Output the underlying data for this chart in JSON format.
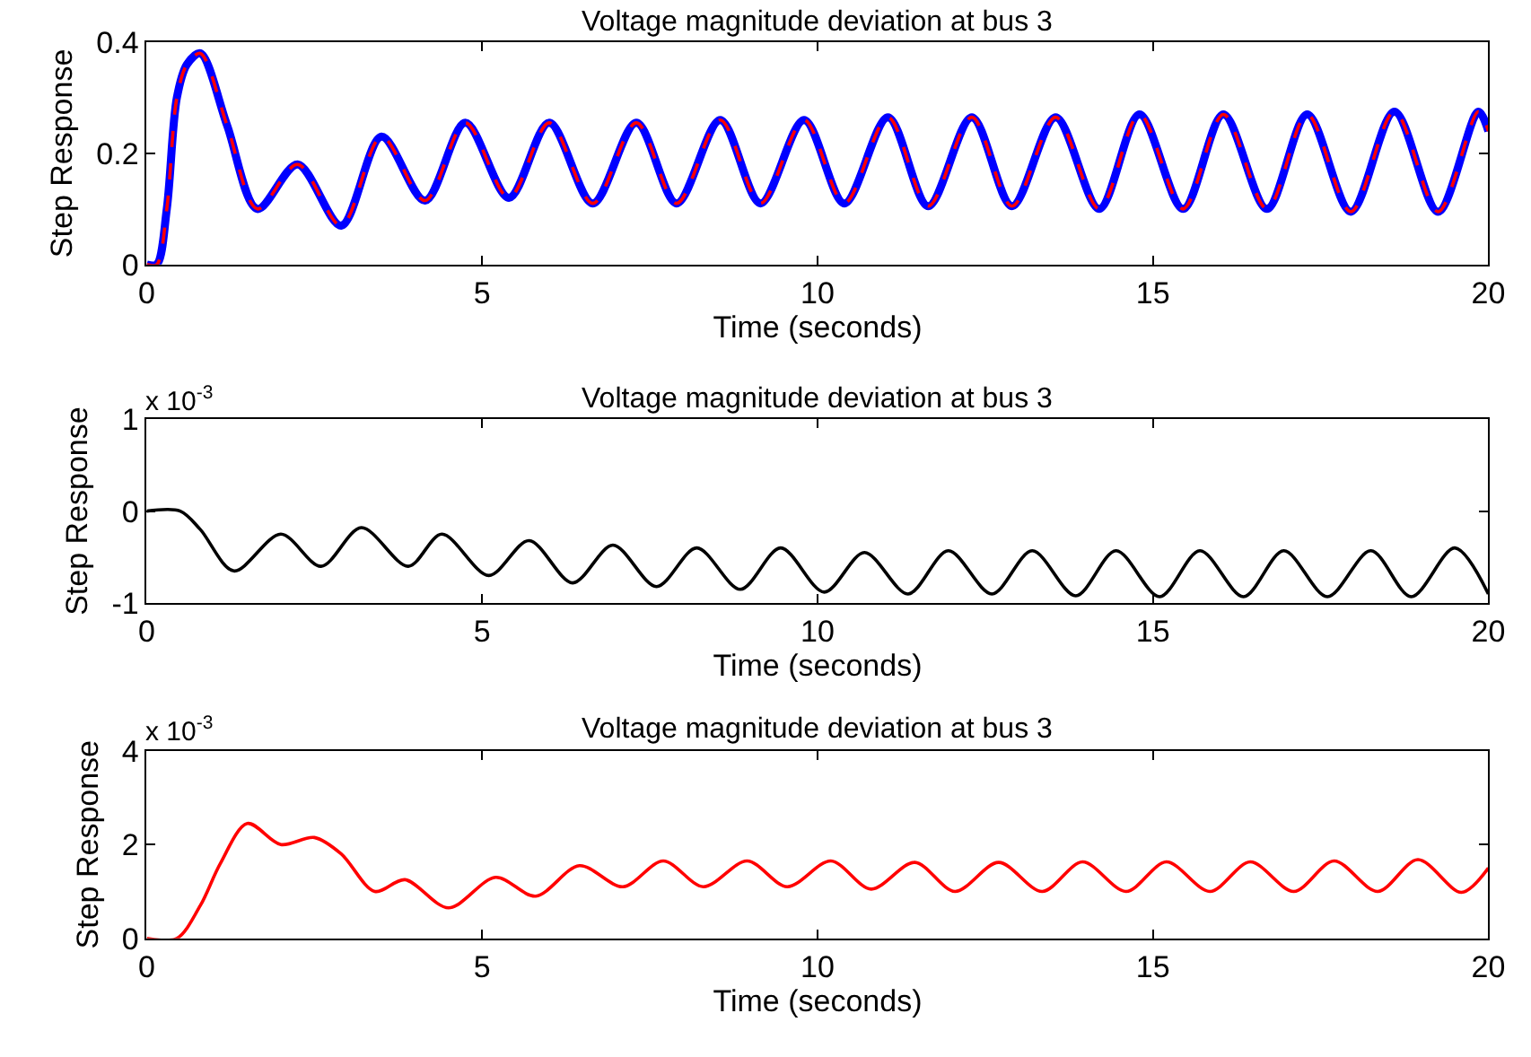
{
  "chart_data": [
    {
      "type": "line",
      "title": "Voltage magnitude deviation at bus 3",
      "xlabel": "Time (seconds)",
      "ylabel": "Step Response",
      "xlim": [
        0,
        20
      ],
      "ylim": [
        0,
        0.4
      ],
      "xticks": [
        0,
        5,
        10,
        15,
        20
      ],
      "yticks": [
        0,
        0.2,
        0.4
      ],
      "grid": false,
      "x": [
        0,
        0.15,
        0.3,
        0.45,
        0.6,
        0.8,
        1.2,
        1.65,
        2.25,
        2.9,
        3.5,
        4.15,
        4.75,
        5.4,
        6.0,
        6.65,
        7.3,
        7.9,
        8.55,
        9.15,
        9.8,
        10.4,
        11.05,
        11.65,
        12.3,
        12.9,
        13.55,
        14.2,
        14.8,
        15.45,
        16.05,
        16.7,
        17.3,
        17.95,
        18.6,
        19.25,
        19.85,
        20
      ],
      "series": [
        {
          "color": "#0000ff",
          "line_style": "solid",
          "values": [
            0,
            0,
            0.1,
            0.3,
            0.36,
            0.38,
            0.25,
            0.1,
            0.18,
            0.07,
            0.23,
            0.115,
            0.255,
            0.12,
            0.255,
            0.11,
            0.255,
            0.11,
            0.26,
            0.11,
            0.26,
            0.11,
            0.265,
            0.105,
            0.265,
            0.105,
            0.265,
            0.1,
            0.27,
            0.1,
            0.27,
            0.1,
            0.27,
            0.095,
            0.275,
            0.095,
            0.275,
            0.24
          ]
        },
        {
          "color": "#ff0000",
          "line_style": "dashed",
          "values": [
            0,
            0,
            0.1,
            0.3,
            0.36,
            0.38,
            0.25,
            0.1,
            0.18,
            0.07,
            0.23,
            0.115,
            0.255,
            0.12,
            0.255,
            0.11,
            0.255,
            0.11,
            0.26,
            0.11,
            0.26,
            0.11,
            0.265,
            0.105,
            0.265,
            0.105,
            0.265,
            0.1,
            0.27,
            0.1,
            0.27,
            0.1,
            0.27,
            0.095,
            0.275,
            0.095,
            0.275,
            0.24
          ]
        }
      ]
    },
    {
      "type": "line",
      "title": "Voltage magnitude deviation at bus 3",
      "xlabel": "Time (seconds)",
      "ylabel": "Step Response",
      "annotations": [
        "x 10$^{-3}$"
      ],
      "xlim": [
        0,
        20
      ],
      "ylim": [
        -1,
        1
      ],
      "xticks": [
        0,
        5,
        10,
        15,
        20
      ],
      "yticks": [
        -1,
        0,
        1
      ],
      "grid": false,
      "x": [
        0,
        0.5,
        0.8,
        1.3,
        2.0,
        2.6,
        3.2,
        3.9,
        4.4,
        5.1,
        5.7,
        6.35,
        6.95,
        7.6,
        8.2,
        8.85,
        9.45,
        10.1,
        10.7,
        11.35,
        11.95,
        12.6,
        13.2,
        13.85,
        14.45,
        15.1,
        15.7,
        16.35,
        16.95,
        17.6,
        18.25,
        18.85,
        19.5,
        20
      ],
      "series": [
        {
          "color": "#000000",
          "line_style": "solid",
          "values": [
            0,
            0,
            -0.2,
            -0.65,
            -0.25,
            -0.6,
            -0.18,
            -0.6,
            -0.25,
            -0.7,
            -0.32,
            -0.78,
            -0.37,
            -0.82,
            -0.4,
            -0.85,
            -0.4,
            -0.88,
            -0.45,
            -0.9,
            -0.43,
            -0.9,
            -0.43,
            -0.92,
            -0.43,
            -0.93,
            -0.43,
            -0.93,
            -0.43,
            -0.93,
            -0.43,
            -0.93,
            -0.4,
            -0.9
          ]
        }
      ]
    },
    {
      "type": "line",
      "title": "Voltage magnitude deviation at bus 3",
      "xlabel": "Time (seconds)",
      "ylabel": "Step Response",
      "annotations": [
        "x 10$^{-3}$"
      ],
      "xlim": [
        0,
        20
      ],
      "ylim": [
        0,
        4
      ],
      "xticks": [
        0,
        5,
        10,
        15,
        20
      ],
      "yticks": [
        0,
        2,
        4
      ],
      "grid": false,
      "x": [
        0,
        0.45,
        0.8,
        1.1,
        1.5,
        2.0,
        2.5,
        2.9,
        3.4,
        3.85,
        4.5,
        5.2,
        5.8,
        6.45,
        7.1,
        7.7,
        8.3,
        8.95,
        9.55,
        10.2,
        10.8,
        11.45,
        12.05,
        12.7,
        13.35,
        13.95,
        14.6,
        15.2,
        15.85,
        16.45,
        17.1,
        17.7,
        18.35,
        18.95,
        19.6,
        20
      ],
      "series": [
        {
          "color": "#ff0000",
          "line_style": "solid",
          "values": [
            0,
            0,
            0.7,
            1.6,
            2.45,
            2.0,
            2.15,
            1.8,
            1.0,
            1.25,
            0.65,
            1.3,
            0.9,
            1.55,
            1.1,
            1.65,
            1.1,
            1.65,
            1.1,
            1.65,
            1.05,
            1.62,
            1.0,
            1.62,
            1.0,
            1.63,
            1.0,
            1.63,
            1.0,
            1.63,
            1.0,
            1.65,
            1.0,
            1.68,
            0.98,
            1.5
          ]
        }
      ]
    }
  ]
}
